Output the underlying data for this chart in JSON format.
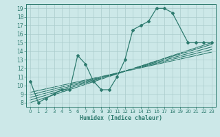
{
  "title": "",
  "xlabel": "Humidex (Indice chaleur)",
  "xlim": [
    -0.5,
    23.5
  ],
  "ylim": [
    7.5,
    19.5
  ],
  "xticks": [
    0,
    1,
    2,
    3,
    4,
    5,
    6,
    7,
    8,
    9,
    10,
    11,
    12,
    13,
    14,
    15,
    16,
    17,
    18,
    19,
    20,
    21,
    22,
    23
  ],
  "yticks": [
    8,
    9,
    10,
    11,
    12,
    13,
    14,
    15,
    16,
    17,
    18,
    19
  ],
  "bg_color": "#cce8e8",
  "grid_color": "#aacccc",
  "line_color": "#2d7a6e",
  "main_line": {
    "x": [
      0,
      1,
      2,
      3,
      4,
      5,
      6,
      7,
      8,
      9,
      10,
      11,
      12,
      13,
      14,
      15,
      16,
      17,
      18,
      20,
      21,
      22,
      23
    ],
    "y": [
      10.5,
      8.0,
      8.5,
      9.0,
      9.5,
      9.5,
      13.5,
      12.5,
      10.5,
      9.5,
      9.5,
      11.0,
      13.0,
      16.5,
      17.0,
      17.5,
      19.0,
      19.0,
      18.5,
      15.0,
      15.0,
      15.0,
      15.0
    ]
  },
  "straight_lines": [
    {
      "x0": 0,
      "y0": 8.0,
      "x1": 23,
      "y1": 15.0
    },
    {
      "x0": 0,
      "y0": 8.3,
      "x1": 23,
      "y1": 14.8
    },
    {
      "x0": 0,
      "y0": 8.6,
      "x1": 23,
      "y1": 14.5
    },
    {
      "x0": 0,
      "y0": 8.9,
      "x1": 23,
      "y1": 14.2
    },
    {
      "x0": 0,
      "y0": 9.2,
      "x1": 23,
      "y1": 13.9
    }
  ]
}
